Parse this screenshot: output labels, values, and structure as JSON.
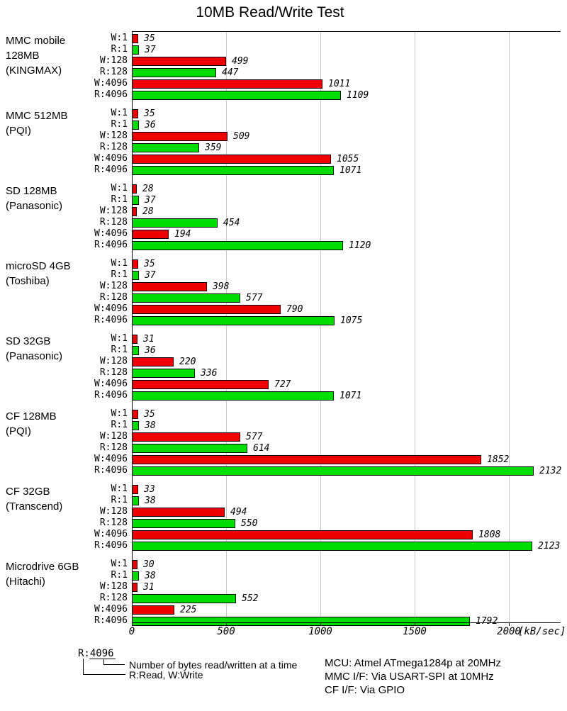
{
  "title": "10MB Read/Write Test",
  "chart_data": {
    "type": "bar",
    "orientation": "horizontal",
    "title": "10MB Read/Write Test",
    "unit_label": "[kB/sec]",
    "xlim": [
      0,
      2270
    ],
    "xticks": [
      0,
      500,
      1000,
      1500,
      2000
    ],
    "grid": "vertical-gray-lines",
    "colors": {
      "write_bar": "#ee0000",
      "read_bar": "#00dd00"
    },
    "row_labels": [
      "W:1",
      "R:1",
      "W:128",
      "R:128",
      "W:4096",
      "R:4096"
    ],
    "groups": [
      {
        "label_lines": [
          "MMC mobile",
          "128MB",
          "(KINGMAX)"
        ],
        "values": [
          35,
          37,
          499,
          447,
          1011,
          1109
        ]
      },
      {
        "label_lines": [
          "MMC 512MB",
          "(PQI)"
        ],
        "values": [
          35,
          36,
          509,
          359,
          1055,
          1071
        ]
      },
      {
        "label_lines": [
          "SD 128MB",
          "(Panasonic)"
        ],
        "values": [
          28,
          37,
          28,
          454,
          194,
          1120
        ]
      },
      {
        "label_lines": [
          "microSD 4GB",
          "(Toshiba)"
        ],
        "values": [
          35,
          37,
          398,
          577,
          790,
          1075
        ]
      },
      {
        "label_lines": [
          "SD 32GB",
          "(Panasonic)"
        ],
        "values": [
          31,
          36,
          220,
          336,
          727,
          1071
        ]
      },
      {
        "label_lines": [
          "CF 128MB",
          "(PQI)"
        ],
        "values": [
          35,
          38,
          577,
          614,
          1852,
          2132
        ]
      },
      {
        "label_lines": [
          "CF 32GB",
          "(Transcend)"
        ],
        "values": [
          33,
          38,
          494,
          550,
          1808,
          2123
        ]
      },
      {
        "label_lines": [
          "Microdrive 6GB",
          "(Hitachi)"
        ],
        "values": [
          30,
          38,
          31,
          552,
          225,
          1792
        ]
      }
    ]
  },
  "legend": {
    "example_label": "R:4096",
    "bytes_note": "Number of bytes read/written at a time",
    "rw_note": "R:Read, W:Write"
  },
  "notes": [
    "MCU: Atmel ATmega1284p at 20MHz",
    "MMC I/F: Via USART-SPI at 10MHz",
    "CF I/F: Via GPIO"
  ]
}
